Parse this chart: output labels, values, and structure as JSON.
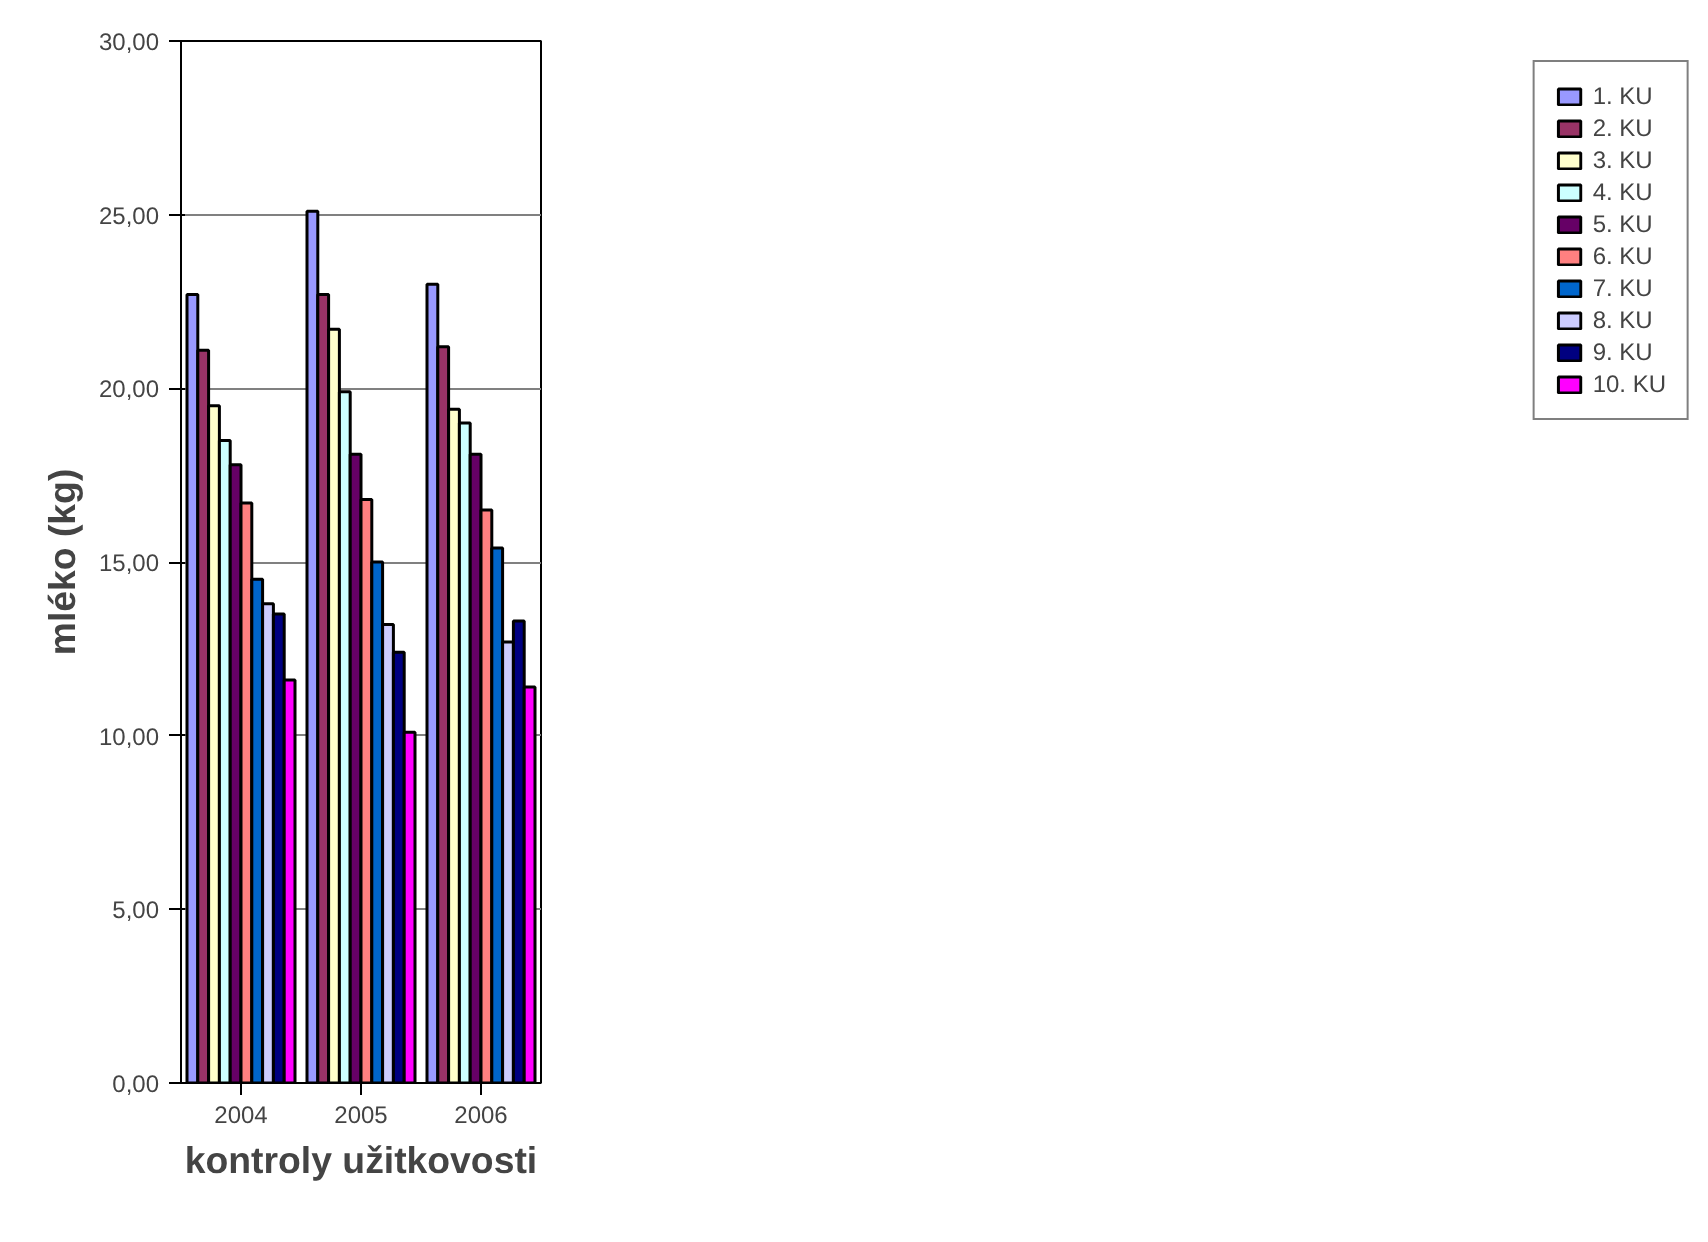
{
  "chart_data": {
    "type": "bar",
    "xlabel": "kontroly užitkovosti",
    "ylabel": "mléko (kg)",
    "categories": [
      "2004",
      "2005",
      "2006"
    ],
    "ylim": [
      0,
      30
    ],
    "yticks": [
      {
        "value": 0,
        "label": "0,00"
      },
      {
        "value": 5,
        "label": "5,00"
      },
      {
        "value": 10,
        "label": "10,00"
      },
      {
        "value": 15,
        "label": "15,00"
      },
      {
        "value": 20,
        "label": "20,00"
      },
      {
        "value": 25,
        "label": "25,00"
      },
      {
        "value": 30,
        "label": "30,00"
      }
    ],
    "grid": "y",
    "legend": "right",
    "series": [
      {
        "name": "1. KU",
        "color": "#9999ff",
        "values": [
          22.7,
          25.1,
          23.0
        ]
      },
      {
        "name": "2. KU",
        "color": "#993366",
        "values": [
          21.1,
          22.7,
          21.2
        ]
      },
      {
        "name": "3. KU",
        "color": "#ffffcc",
        "values": [
          19.5,
          21.7,
          19.4
        ]
      },
      {
        "name": "4. KU",
        "color": "#ccffff",
        "values": [
          18.5,
          19.9,
          19.0
        ]
      },
      {
        "name": "5. KU",
        "color": "#660066",
        "values": [
          17.8,
          18.1,
          18.1
        ]
      },
      {
        "name": "6. KU",
        "color": "#ff8080",
        "values": [
          16.7,
          16.8,
          16.5
        ]
      },
      {
        "name": "7. KU",
        "color": "#0066cc",
        "values": [
          14.5,
          15.0,
          15.4
        ]
      },
      {
        "name": "8. KU",
        "color": "#ccccff",
        "values": [
          13.8,
          13.2,
          12.7
        ]
      },
      {
        "name": "9. KU",
        "color": "#000080",
        "values": [
          13.5,
          12.4,
          13.3
        ]
      },
      {
        "name": "10. KU",
        "color": "#ff00ff",
        "values": [
          11.6,
          10.1,
          11.4
        ]
      }
    ]
  }
}
